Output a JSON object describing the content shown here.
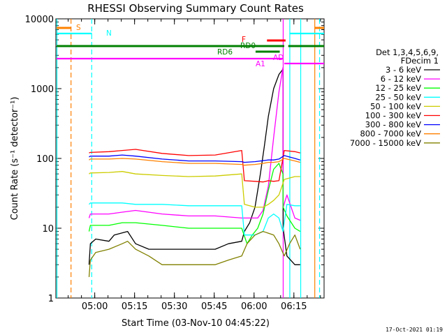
{
  "chart_data": {
    "type": "line",
    "title": "RHESSI Observing Summary Count Rates",
    "xlabel": "Start Time (03-Nov-10 04:45:22)",
    "ylabel": "Count Rate (s⁻¹ detector⁻¹)",
    "yscale": "log",
    "ylim": [
      1,
      10000
    ],
    "xlim_minutes": [
      0,
      101
    ],
    "x_ticks": [
      "05:00",
      "05:15",
      "05:30",
      "05:45",
      "06:00",
      "06:15"
    ],
    "y_ticks": [
      "1",
      "10",
      "100",
      "1000",
      "10000"
    ],
    "legend_header": [
      "Det 1,3,4,5,6,9,",
      "FDecim 1"
    ],
    "legend_placement": "right",
    "series": [
      {
        "name": "3 - 6 keV",
        "color": "#000000",
        "x": [
          12.5,
          13,
          15,
          20,
          22,
          27,
          30,
          35,
          40,
          45,
          55,
          60,
          65,
          70,
          71,
          73,
          75,
          77,
          78.5,
          80,
          82,
          84,
          85.5,
          85.6,
          87,
          90,
          92
        ],
        "y": [
          3,
          6,
          7,
          6.5,
          8,
          9,
          6,
          5,
          5,
          5,
          5,
          5,
          6,
          6.5,
          9,
          12,
          20,
          60,
          150,
          400,
          1000,
          1600,
          1900,
          10,
          4,
          3,
          3
        ]
      },
      {
        "name": "6 - 12 keV",
        "color": "#ff00ff",
        "x": [
          12.5,
          13,
          20,
          25,
          30,
          40,
          50,
          60,
          70,
          72,
          74,
          76,
          78,
          80,
          82,
          84,
          85.5,
          85.6,
          87,
          90,
          92
        ],
        "y": [
          14,
          16,
          16,
          17,
          18,
          16,
          15,
          15,
          14,
          14,
          14,
          14,
          18,
          40,
          200,
          900,
          2000,
          20,
          30,
          14,
          13
        ]
      },
      {
        "name": "12 - 25 keV",
        "color": "#00ff00",
        "x": [
          12.5,
          13,
          20,
          25,
          30,
          40,
          50,
          60,
          70,
          72,
          74,
          76,
          78,
          80,
          82,
          84,
          85.5,
          85.6,
          87,
          90,
          92
        ],
        "y": [
          9,
          11,
          11,
          12,
          12,
          11,
          10,
          10,
          10,
          6,
          8,
          10,
          16,
          35,
          70,
          85,
          60,
          20,
          15,
          10,
          9
        ]
      },
      {
        "name": "25 - 50 keV",
        "color": "#00ffff",
        "x": [
          12.5,
          13,
          20,
          25,
          30,
          40,
          50,
          60,
          70,
          71,
          73,
          75,
          78,
          80,
          82,
          84,
          85.5,
          87,
          90,
          92
        ],
        "y": [
          22,
          23,
          23,
          23,
          22,
          22,
          21,
          21,
          21,
          8,
          8,
          8,
          9,
          14,
          16,
          14,
          9,
          22,
          21,
          21
        ]
      },
      {
        "name": "50 - 100 keV",
        "color": "#cccc00",
        "x": [
          12.5,
          13,
          20,
          25,
          30,
          40,
          50,
          60,
          70,
          71,
          75,
          78,
          80,
          82,
          84,
          86,
          90,
          92
        ],
        "y": [
          60,
          62,
          63,
          65,
          60,
          57,
          55,
          56,
          60,
          22,
          20,
          20,
          22,
          25,
          30,
          50,
          55,
          55
        ]
      },
      {
        "name": "100 - 300 keV",
        "color": "#ff0000",
        "x": [
          12.5,
          13,
          20,
          25,
          30,
          40,
          50,
          60,
          70,
          71,
          75,
          78,
          80,
          82,
          84,
          86,
          90,
          92
        ],
        "y": [
          120,
          122,
          125,
          130,
          135,
          118,
          110,
          112,
          130,
          48,
          47,
          46,
          48,
          47,
          48,
          130,
          125,
          120
        ]
      },
      {
        "name": "300 - 800 keV",
        "color": "#0000ff",
        "x": [
          12.5,
          13,
          20,
          25,
          30,
          40,
          50,
          60,
          70,
          71,
          75,
          78,
          80,
          82,
          84,
          86,
          90,
          92
        ],
        "y": [
          105,
          108,
          108,
          112,
          108,
          98,
          92,
          92,
          90,
          88,
          90,
          93,
          95,
          95,
          98,
          110,
          100,
          95
        ]
      },
      {
        "name": "800 - 7000 keV",
        "color": "#ff8000",
        "x": [
          12.5,
          13,
          20,
          25,
          30,
          40,
          50,
          60,
          70,
          71,
          75,
          78,
          80,
          82,
          84,
          86,
          90,
          92
        ],
        "y": [
          95,
          98,
          98,
          100,
          98,
          90,
          85,
          85,
          82,
          80,
          82,
          85,
          88,
          88,
          90,
          100,
          92,
          88
        ]
      },
      {
        "name": "7000 - 15000 keV",
        "color": "#808000",
        "x": [
          12.5,
          13,
          15,
          20,
          25,
          27,
          30,
          35,
          40,
          50,
          60,
          65,
          70,
          72,
          75,
          78,
          80,
          82,
          84,
          86,
          88,
          90,
          92
        ],
        "y": [
          2,
          3.5,
          4.5,
          5,
          6,
          6.5,
          5,
          4,
          3,
          3,
          3,
          3.5,
          4,
          6,
          8,
          9,
          8.5,
          8,
          6,
          4,
          6,
          8,
          5
        ]
      }
    ],
    "annotations": [
      {
        "label": "S",
        "color": "#ff8000"
      },
      {
        "label": "N",
        "color": "#00ffff"
      },
      {
        "label": "F",
        "color": "#ff0000"
      },
      {
        "label": "RD0",
        "color": "#008000"
      },
      {
        "label": "RD6",
        "color": "#008000"
      },
      {
        "label": "AD",
        "color": "#ff00ff"
      },
      {
        "label": "A1",
        "color": "#ff00ff"
      }
    ]
  },
  "footer": {
    "timestamp": "17-Oct-2021 01:19"
  }
}
